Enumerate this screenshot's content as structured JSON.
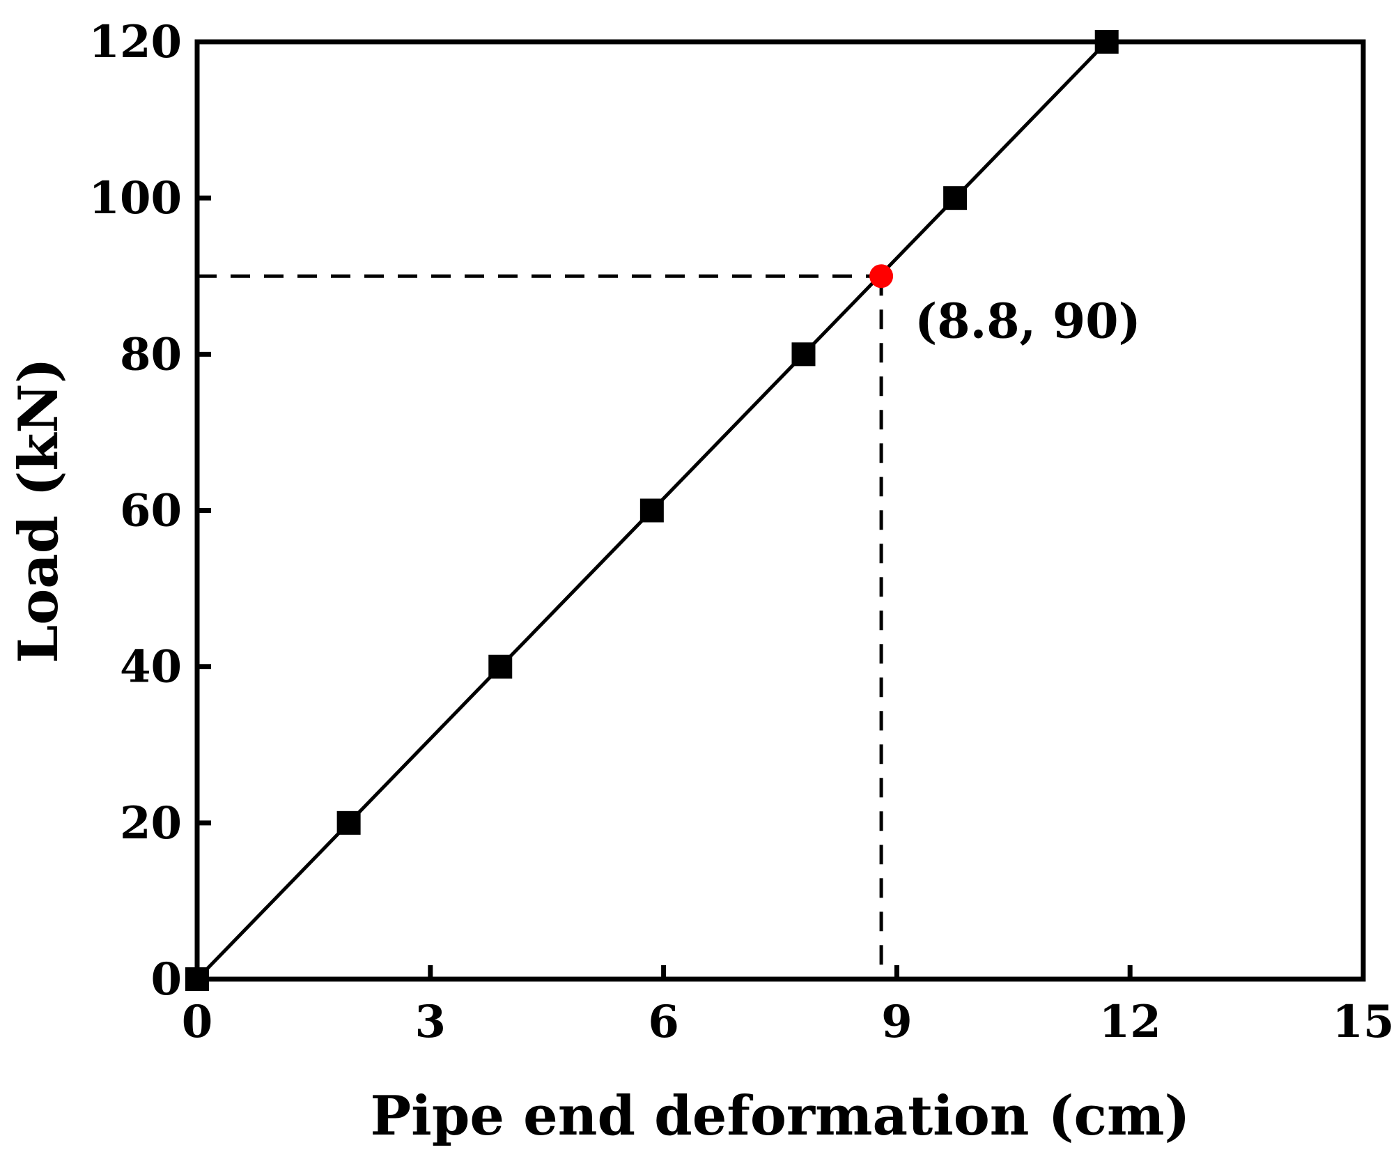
{
  "chart_data": {
    "type": "line",
    "title": "",
    "xlabel": "Pipe end deformation (cm)",
    "ylabel": "Load (kN)",
    "xlim": [
      0,
      15
    ],
    "ylim": [
      0,
      120
    ],
    "xticks": [
      0,
      3,
      6,
      9,
      12,
      15
    ],
    "yticks": [
      0,
      20,
      40,
      60,
      80,
      100,
      120
    ],
    "xtick_labels": [
      "0",
      "3",
      "6",
      "9",
      "12",
      "15"
    ],
    "ytick_labels": [
      "0",
      "20",
      "40",
      "60",
      "80",
      "100",
      "120"
    ],
    "grid": false,
    "legend": "none",
    "series": [
      {
        "x": [
          0,
          1.95,
          3.9,
          5.85,
          7.8,
          9.75,
          11.7
        ],
        "y": [
          0,
          20,
          40,
          60,
          80,
          100,
          120
        ],
        "marker": "square",
        "color": "#000000"
      }
    ],
    "annotation": {
      "point": {
        "x": 8.8,
        "y": 90
      },
      "label": "(8.8, 90)",
      "marker": "circle",
      "color": "#ff0000",
      "guide_lines": "dashed"
    }
  }
}
